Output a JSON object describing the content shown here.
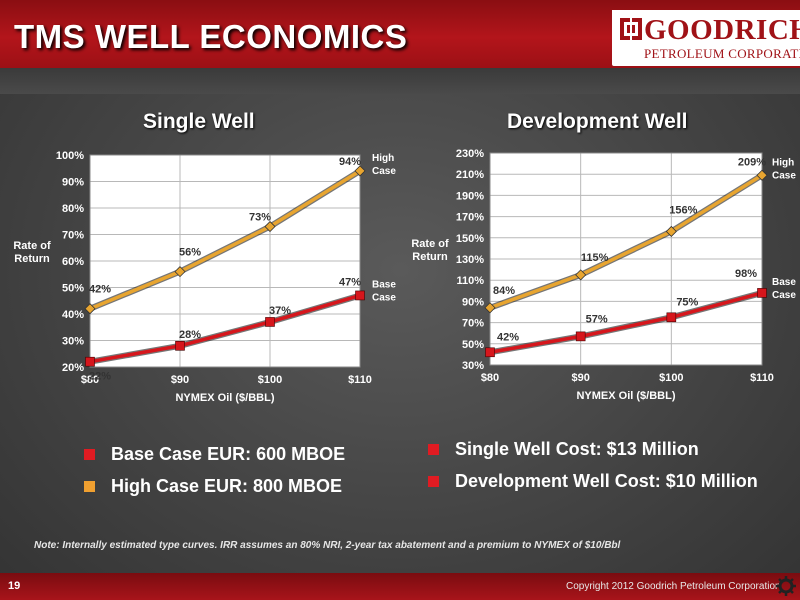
{
  "header": {
    "title": "TMS WELL ECONOMICS",
    "logo_name": "GOODRICH",
    "logo_sub": "PETROLEUM CORPORATION"
  },
  "chart_data": [
    {
      "type": "line",
      "title": "Single Well",
      "xlabel": "NYMEX Oil ($/BBL)",
      "ylabel": [
        "Rate of",
        "Return"
      ],
      "categories": [
        "$80",
        "$90",
        "$100",
        "$110"
      ],
      "ylim": [
        20,
        100
      ],
      "yticks": [
        20,
        30,
        40,
        50,
        60,
        70,
        80,
        90,
        100
      ],
      "ytick_labels": [
        "20%",
        "30%",
        "40%",
        "50%",
        "60%",
        "70%",
        "80%",
        "90%",
        "100%"
      ],
      "grid": true,
      "series": [
        {
          "name": [
            "High",
            "Case"
          ],
          "color": "#e8a530",
          "marker": "diamond",
          "values": [
            42,
            56,
            73,
            94
          ],
          "labels": [
            "42%",
            "56%",
            "73%",
            "94%"
          ]
        },
        {
          "name": [
            "Base",
            "Case"
          ],
          "color": "#d6161c",
          "marker": "square",
          "values": [
            22,
            28,
            37,
            47
          ],
          "labels": [
            "22%",
            "28%",
            "37%",
            "47%"
          ]
        }
      ]
    },
    {
      "type": "line",
      "title": "Development Well",
      "xlabel": "NYMEX Oil ($/BBL)",
      "ylabel": [
        "Rate of",
        "Return"
      ],
      "categories": [
        "$80",
        "$90",
        "$100",
        "$110"
      ],
      "ylim": [
        30,
        230
      ],
      "yticks": [
        30,
        50,
        70,
        90,
        110,
        130,
        150,
        170,
        190,
        210,
        230
      ],
      "ytick_labels": [
        "30%",
        "50%",
        "70%",
        "90%",
        "110%",
        "130%",
        "150%",
        "170%",
        "190%",
        "210%",
        "230%"
      ],
      "grid": true,
      "series": [
        {
          "name": [
            "High",
            "Case"
          ],
          "color": "#e8a530",
          "marker": "diamond",
          "values": [
            84,
            115,
            156,
            209
          ],
          "labels": [
            "84%",
            "115%",
            "156%",
            "209%"
          ]
        },
        {
          "name": [
            "Base",
            "Case"
          ],
          "color": "#d6161c",
          "marker": "square",
          "values": [
            42,
            57,
            75,
            98
          ],
          "labels": [
            "42%",
            "57%",
            "75%",
            "98%"
          ]
        }
      ]
    }
  ],
  "bullets_left": [
    {
      "text": "Base Case EUR: 600 MBOE",
      "color": "#e01b22"
    },
    {
      "text": "High Case EUR: 800 MBOE",
      "color": "#f0a030"
    }
  ],
  "bullets_right": [
    {
      "text": "Single Well Cost: $13 Million",
      "color": "#e01b22"
    },
    {
      "text": "Development Well Cost: $10 Million",
      "color": "#e01b22"
    }
  ],
  "note": "Note:  Internally estimated type curves.  IRR assumes  an 80% NRI, 2-year tax abatement and a premium to NYMEX of $10/Bbl",
  "footer": {
    "page_number": "19",
    "copyright": "Copyright 2012 Goodrich Petroleum Corporation"
  }
}
